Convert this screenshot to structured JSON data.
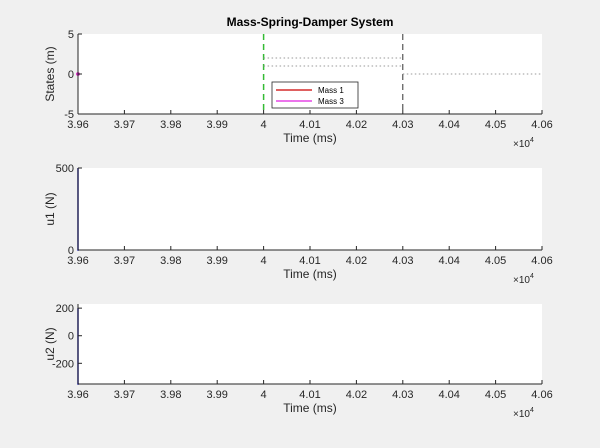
{
  "figure": {
    "background": "#f0f0f0",
    "axes_background": "#ffffff",
    "axis_color": "#262626"
  },
  "chart_data": [
    {
      "type": "line",
      "title": "Mass-Spring-Damper System",
      "xlabel": "Time (ms)",
      "ylabel": "States (m)",
      "xlim": [
        39600,
        40600
      ],
      "ylim": [
        -5,
        5
      ],
      "x_ticks": [
        39600,
        39700,
        39800,
        39900,
        40000,
        40100,
        40200,
        40300,
        40400,
        40500,
        40600
      ],
      "x_tick_labels": [
        "3.96",
        "3.97",
        "3.98",
        "3.99",
        "4",
        "4.01",
        "4.02",
        "4.03",
        "4.04",
        "4.05",
        "4.06"
      ],
      "x_exponent_label": {
        "base": "×10",
        "exp": "4"
      },
      "y_ticks": [
        -5,
        0,
        5
      ],
      "y_tick_labels": [
        "-5",
        "0",
        "5"
      ],
      "grid": false,
      "legend": {
        "placement": "bottom-center",
        "entries": [
          {
            "name": "Mass 1",
            "color": "#cc0000"
          },
          {
            "name": "Mass 3",
            "color": "#e020e0"
          }
        ]
      },
      "series": [
        {
          "name": "Mass 1",
          "color": "#cc0000",
          "x": [
            39600
          ],
          "y": [
            0
          ]
        },
        {
          "name": "Mass 3",
          "color": "#e020e0",
          "x": [
            39600
          ],
          "y": [
            0
          ]
        }
      ],
      "reference_lines": [
        {
          "axis": "x",
          "value": 40000,
          "color": "#33bb33",
          "style": "dashed",
          "width": 1.5
        },
        {
          "axis": "x",
          "value": 40300,
          "color": "#333333",
          "style": "dashed",
          "width": 1
        },
        {
          "axis": "segment",
          "x": [
            40000,
            40300
          ],
          "y": 2,
          "color": "#999999",
          "style": "dotted"
        },
        {
          "axis": "segment",
          "x": [
            40000,
            40300
          ],
          "y": 1,
          "color": "#999999",
          "style": "dotted"
        },
        {
          "axis": "segment",
          "x": [
            40300,
            40600
          ],
          "y": 0,
          "color": "#999999",
          "style": "dotted"
        }
      ]
    },
    {
      "type": "line",
      "title": "",
      "xlabel": "Time (ms)",
      "ylabel": "u1 (N)",
      "xlim": [
        39600,
        40600
      ],
      "ylim": [
        0,
        500
      ],
      "x_ticks": [
        39600,
        39700,
        39800,
        39900,
        40000,
        40100,
        40200,
        40300,
        40400,
        40500,
        40600
      ],
      "x_tick_labels": [
        "3.96",
        "3.97",
        "3.98",
        "3.99",
        "4",
        "4.01",
        "4.02",
        "4.03",
        "4.04",
        "4.05",
        "4.06"
      ],
      "x_exponent_label": {
        "base": "×10",
        "exp": "4"
      },
      "y_ticks": [
        0,
        500
      ],
      "y_tick_labels": [
        "0",
        "500"
      ],
      "grid": false,
      "series": [
        {
          "color": "#1f1fbf",
          "x": [
            39600,
            39600,
            39602
          ],
          "y": [
            500,
            0,
            0
          ]
        }
      ]
    },
    {
      "type": "line",
      "title": "",
      "xlabel": "Time (ms)",
      "ylabel": "u2 (N)",
      "xlim": [
        39600,
        40600
      ],
      "ylim": [
        -350,
        230
      ],
      "x_ticks": [
        39600,
        39700,
        39800,
        39900,
        40000,
        40100,
        40200,
        40300,
        40400,
        40500,
        40600
      ],
      "x_tick_labels": [
        "3.96",
        "3.97",
        "3.98",
        "3.99",
        "4",
        "4.01",
        "4.02",
        "4.03",
        "4.04",
        "4.05",
        "4.06"
      ],
      "x_exponent_label": {
        "base": "×10",
        "exp": "4"
      },
      "y_ticks": [
        -200,
        0,
        200
      ],
      "y_tick_labels": [
        "-200",
        "0",
        "200"
      ],
      "grid": false,
      "series": [
        {
          "color": "#1f1fbf",
          "x": [
            39600,
            39600,
            39602
          ],
          "y": [
            200,
            -350,
            -350
          ]
        }
      ]
    }
  ]
}
